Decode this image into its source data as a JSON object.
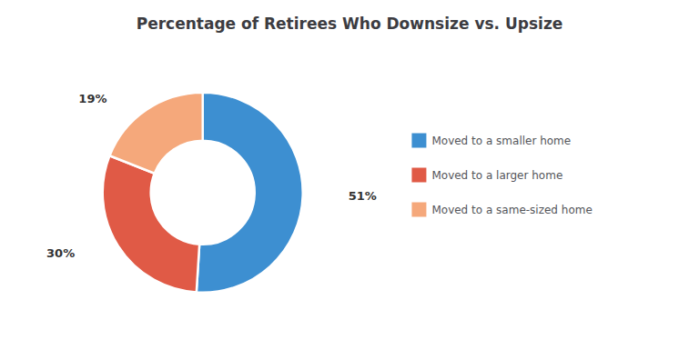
{
  "chart_data": {
    "type": "pie",
    "title": "Percentage of Retirees Who Downsize vs. Upsize",
    "categories": [
      "Moved to a smaller home",
      "Moved to a larger home",
      "Moved to a same-sized home"
    ],
    "values": [
      51,
      30,
      19
    ],
    "value_labels": [
      "51%",
      "30%",
      "19%"
    ],
    "colors": [
      "#3d8fd1",
      "#e05a46",
      "#f5a87b"
    ],
    "data_labels": true,
    "legend": "right"
  }
}
